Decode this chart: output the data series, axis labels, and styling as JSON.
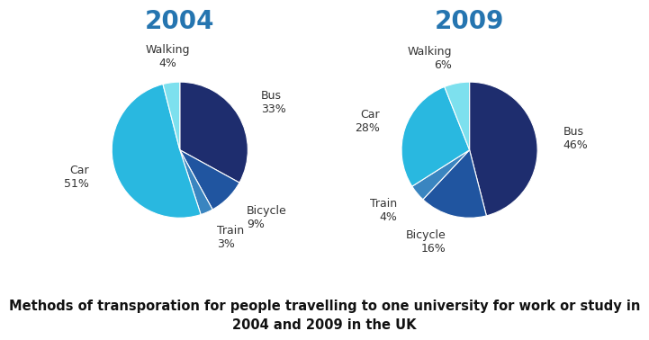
{
  "title_2004": "2004",
  "title_2009": "2009",
  "title_color": "#2575b0",
  "caption": "Methods of transporation for people travelling to one university for work or study in\n2004 and 2009 in the UK",
  "caption_fontsize": 10.5,
  "title_fontsize": 20,
  "label_fontsize": 9,
  "categories": [
    "Bus",
    "Bicycle",
    "Train",
    "Car",
    "Walking"
  ],
  "values_2004": [
    33,
    9,
    3,
    51,
    4
  ],
  "values_2009": [
    46,
    16,
    4,
    28,
    6
  ],
  "colors": {
    "Bus": "#1e2d6e",
    "Bicycle": "#2055a0",
    "Train": "#3a85c0",
    "Car": "#29b8e0",
    "Walking": "#7de0ee"
  },
  "startangle_2004": 90,
  "startangle_2009": 90,
  "background_color": "#ffffff",
  "label_color": "#333333"
}
